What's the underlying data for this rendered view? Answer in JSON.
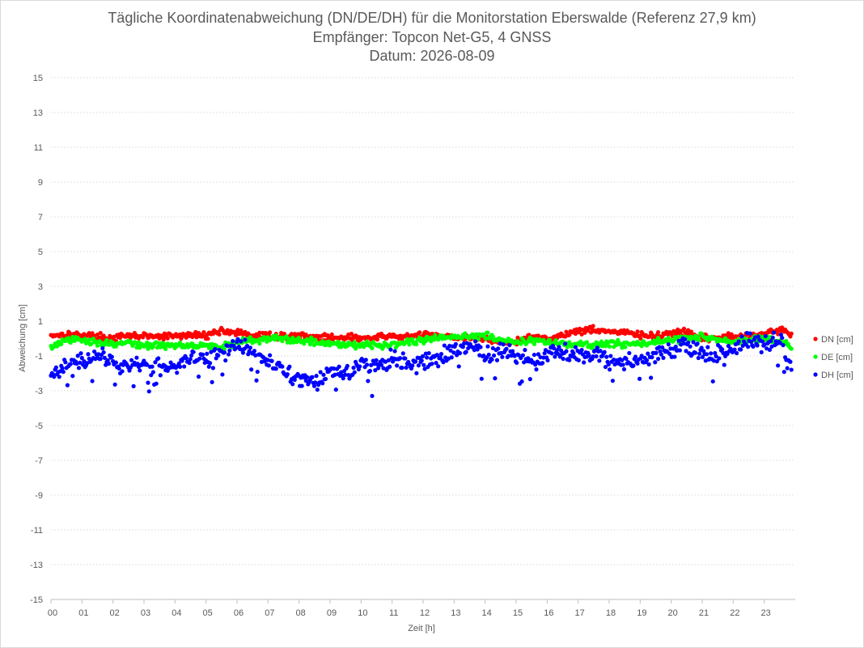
{
  "chart_data": {
    "type": "scatter",
    "title": "Tägliche Koordinatenabweichung (DN/DE/DH) für die Monitorstation Eberswalde (Referenz 27,9 km)",
    "subtitle1": "Empfänger: Topcon Net-G5, 4 GNSS",
    "subtitle2": "Datum: 2026-08-09",
    "xlabel": "Zeit [h]",
    "ylabel": "Abweichung [cm]",
    "xlim": [
      0,
      24
    ],
    "ylim": [
      -15,
      15
    ],
    "x_ticks": [
      "00",
      "01",
      "02",
      "03",
      "04",
      "05",
      "06",
      "07",
      "08",
      "09",
      "10",
      "11",
      "12",
      "13",
      "14",
      "15",
      "16",
      "17",
      "18",
      "19",
      "20",
      "21",
      "22",
      "23"
    ],
    "y_ticks": [
      15,
      13,
      11,
      9,
      7,
      5,
      3,
      1,
      -1,
      -3,
      -5,
      -7,
      -9,
      -11,
      -13,
      -15
    ],
    "grid": "horizontal dotted",
    "legend_position": "right",
    "sample_interval_h": 0.0333,
    "series": [
      {
        "name": "DN [cm]",
        "color": "#ff0000",
        "points": [
          [
            0.0,
            0.2
          ],
          [
            0.5,
            0.25
          ],
          [
            1.0,
            0.2
          ],
          [
            1.5,
            0.1
          ],
          [
            2.0,
            0.0
          ],
          [
            2.5,
            0.15
          ],
          [
            3.0,
            0.15
          ],
          [
            3.5,
            0.1
          ],
          [
            4.0,
            0.15
          ],
          [
            4.5,
            0.2
          ],
          [
            5.0,
            0.2
          ],
          [
            5.5,
            0.45
          ],
          [
            6.0,
            0.35
          ],
          [
            6.5,
            0.1
          ],
          [
            7.0,
            0.2
          ],
          [
            7.5,
            0.1
          ],
          [
            8.0,
            0.2
          ],
          [
            8.5,
            0.05
          ],
          [
            9.0,
            0.05
          ],
          [
            9.5,
            0.1
          ],
          [
            10.0,
            0.0
          ],
          [
            10.5,
            0.05
          ],
          [
            11.0,
            0.15
          ],
          [
            11.5,
            0.1
          ],
          [
            12.0,
            0.2
          ],
          [
            12.5,
            0.2
          ],
          [
            13.0,
            0.1
          ],
          [
            13.5,
            0.0
          ],
          [
            14.0,
            0.0
          ],
          [
            14.5,
            -0.2
          ],
          [
            15.0,
            -0.2
          ],
          [
            15.5,
            0.1
          ],
          [
            16.0,
            0.0
          ],
          [
            16.5,
            0.2
          ],
          [
            17.0,
            0.45
          ],
          [
            17.5,
            0.55
          ],
          [
            18.0,
            0.4
          ],
          [
            18.5,
            0.35
          ],
          [
            19.0,
            0.2
          ],
          [
            19.5,
            0.1
          ],
          [
            20.0,
            0.35
          ],
          [
            20.5,
            0.3
          ],
          [
            21.0,
            0.0
          ],
          [
            21.5,
            0.05
          ],
          [
            22.0,
            0.1
          ],
          [
            22.5,
            0.15
          ],
          [
            23.0,
            0.3
          ],
          [
            23.5,
            0.5
          ],
          [
            23.9,
            0.2
          ]
        ]
      },
      {
        "name": "DE [cm]",
        "color": "#00ff00",
        "points": [
          [
            0.0,
            -0.5
          ],
          [
            0.5,
            -0.1
          ],
          [
            1.0,
            -0.1
          ],
          [
            1.5,
            -0.2
          ],
          [
            2.0,
            -0.3
          ],
          [
            2.5,
            -0.25
          ],
          [
            3.0,
            -0.4
          ],
          [
            3.5,
            -0.4
          ],
          [
            4.0,
            -0.4
          ],
          [
            4.5,
            -0.35
          ],
          [
            5.0,
            -0.4
          ],
          [
            5.5,
            -0.5
          ],
          [
            6.0,
            -0.2
          ],
          [
            6.5,
            -0.1
          ],
          [
            7.0,
            0.0
          ],
          [
            7.5,
            -0.05
          ],
          [
            8.0,
            -0.1
          ],
          [
            8.5,
            -0.15
          ],
          [
            9.0,
            -0.3
          ],
          [
            9.5,
            -0.3
          ],
          [
            10.0,
            -0.35
          ],
          [
            10.5,
            -0.4
          ],
          [
            11.0,
            -0.3
          ],
          [
            11.5,
            -0.2
          ],
          [
            12.0,
            -0.1
          ],
          [
            12.5,
            0.05
          ],
          [
            13.0,
            0.1
          ],
          [
            13.5,
            0.1
          ],
          [
            14.0,
            0.25
          ],
          [
            14.5,
            -0.1
          ],
          [
            15.0,
            -0.2
          ],
          [
            15.5,
            -0.1
          ],
          [
            16.0,
            -0.2
          ],
          [
            16.5,
            -0.3
          ],
          [
            17.0,
            -0.35
          ],
          [
            17.5,
            -0.4
          ],
          [
            18.0,
            -0.3
          ],
          [
            18.5,
            -0.3
          ],
          [
            19.0,
            -0.3
          ],
          [
            19.5,
            -0.2
          ],
          [
            20.0,
            -0.1
          ],
          [
            20.5,
            0.05
          ],
          [
            21.0,
            0.1
          ],
          [
            21.5,
            -0.1
          ],
          [
            22.0,
            -0.2
          ],
          [
            22.5,
            -0.1
          ],
          [
            23.0,
            0.0
          ],
          [
            23.5,
            -0.2
          ],
          [
            23.9,
            -0.5
          ]
        ]
      },
      {
        "name": "DH [cm]",
        "color": "#0000ff",
        "points": [
          [
            0.0,
            -2.0
          ],
          [
            0.5,
            -1.5
          ],
          [
            1.0,
            -1.3
          ],
          [
            1.5,
            -1.0
          ],
          [
            2.0,
            -1.4
          ],
          [
            2.5,
            -1.6
          ],
          [
            3.0,
            -1.5
          ],
          [
            3.5,
            -1.6
          ],
          [
            4.0,
            -1.5
          ],
          [
            4.5,
            -1.0
          ],
          [
            5.0,
            -1.2
          ],
          [
            5.5,
            -0.9
          ],
          [
            6.0,
            -0.3
          ],
          [
            6.5,
            -0.8
          ],
          [
            7.0,
            -1.4
          ],
          [
            7.5,
            -1.8
          ],
          [
            8.0,
            -2.3
          ],
          [
            8.5,
            -2.4
          ],
          [
            9.0,
            -2.0
          ],
          [
            9.5,
            -1.8
          ],
          [
            10.0,
            -1.5
          ],
          [
            10.5,
            -1.4
          ],
          [
            11.0,
            -1.2
          ],
          [
            11.5,
            -1.5
          ],
          [
            12.0,
            -1.4
          ],
          [
            12.5,
            -1.1
          ],
          [
            13.0,
            -0.7
          ],
          [
            13.5,
            -0.4
          ],
          [
            14.0,
            -1.0
          ],
          [
            14.5,
            -0.8
          ],
          [
            15.0,
            -1.0
          ],
          [
            15.5,
            -1.2
          ],
          [
            16.0,
            -1.0
          ],
          [
            16.5,
            -0.8
          ],
          [
            17.0,
            -0.9
          ],
          [
            17.5,
            -0.9
          ],
          [
            18.0,
            -1.2
          ],
          [
            18.5,
            -1.4
          ],
          [
            19.0,
            -1.3
          ],
          [
            19.5,
            -1.0
          ],
          [
            20.0,
            -0.7
          ],
          [
            20.5,
            -0.3
          ],
          [
            21.0,
            -0.9
          ],
          [
            21.5,
            -1.1
          ],
          [
            22.0,
            -0.5
          ],
          [
            22.5,
            -0.2
          ],
          [
            23.0,
            -0.3
          ],
          [
            23.5,
            -0.1
          ],
          [
            23.9,
            -1.9
          ]
        ]
      }
    ]
  }
}
